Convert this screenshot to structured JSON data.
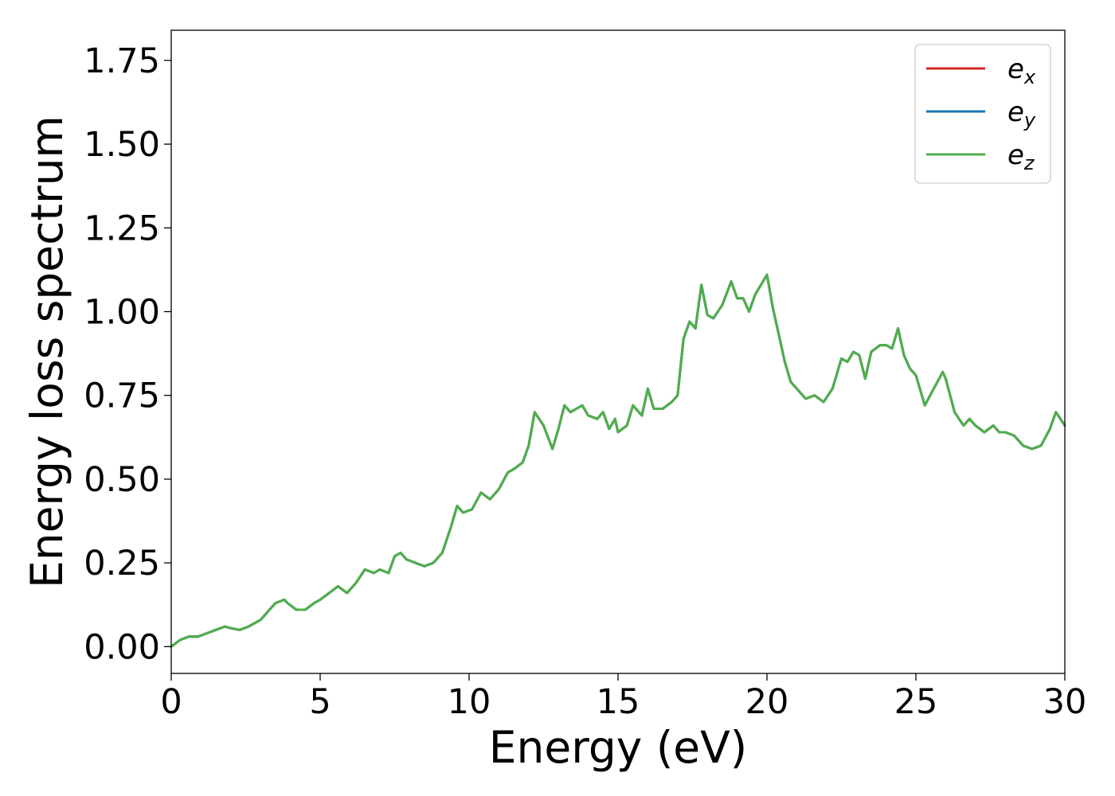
{
  "chart_data": {
    "type": "line",
    "xlabel": "Energy (eV)",
    "ylabel": "Energy loss spectrum",
    "xlim": [
      0,
      30
    ],
    "ylim": [
      -0.08,
      1.84
    ],
    "xticks": [
      0,
      5,
      10,
      15,
      20,
      25,
      30
    ],
    "xtick_labels": [
      "0",
      "5",
      "10",
      "15",
      "20",
      "25",
      "30"
    ],
    "yticks": [
      0.0,
      0.25,
      0.5,
      0.75,
      1.0,
      1.25,
      1.5,
      1.75
    ],
    "ytick_labels": [
      "0.00",
      "0.25",
      "0.50",
      "0.75",
      "1.00",
      "1.25",
      "1.50",
      "1.75"
    ],
    "grid": false,
    "legend_position": "top-right",
    "series_colors": [
      "#d62728",
      "#1f77b4",
      "#4daf4a"
    ],
    "legend": [
      {
        "base": "e",
        "sub": "x"
      },
      {
        "base": "e",
        "sub": "y"
      },
      {
        "base": "e",
        "sub": "z"
      }
    ],
    "x": [
      0,
      0.3,
      0.6,
      0.9,
      1.2,
      1.5,
      1.8,
      2.0,
      2.3,
      2.6,
      3.0,
      3.3,
      3.5,
      3.8,
      3.9,
      4.2,
      4.5,
      4.8,
      5.0,
      5.3,
      5.6,
      5.9,
      6.2,
      6.5,
      6.8,
      7.0,
      7.3,
      7.5,
      7.7,
      7.9,
      8.2,
      8.5,
      8.8,
      9.1,
      9.4,
      9.6,
      9.8,
      10.1,
      10.4,
      10.7,
      11.0,
      11.3,
      11.5,
      11.8,
      12.0,
      12.2,
      12.5,
      12.8,
      13.0,
      13.2,
      13.4,
      13.6,
      13.8,
      14.0,
      14.3,
      14.5,
      14.7,
      14.9,
      15.0,
      15.3,
      15.5,
      15.8,
      16.0,
      16.2,
      16.5,
      16.8,
      17.0,
      17.2,
      17.4,
      17.6,
      17.8,
      18.0,
      18.2,
      18.5,
      18.8,
      19.0,
      19.2,
      19.4,
      19.6,
      20.0,
      20.2,
      20.4,
      20.6,
      20.8,
      21.0,
      21.3,
      21.6,
      21.9,
      22.2,
      22.5,
      22.7,
      22.9,
      23.1,
      23.3,
      23.5,
      23.8,
      24.0,
      24.2,
      24.4,
      24.6,
      24.8,
      25.0,
      25.3,
      25.6,
      25.9,
      26.0,
      26.3,
      26.6,
      26.8,
      27.0,
      27.3,
      27.6,
      27.8,
      28.0,
      28.3,
      28.6,
      28.9,
      29.2,
      29.5,
      29.7,
      30.0
    ],
    "series": [
      {
        "values": [
          0.0,
          0.02,
          0.03,
          0.03,
          0.04,
          0.05,
          0.06,
          0.055,
          0.05,
          0.06,
          0.08,
          0.11,
          0.13,
          0.14,
          0.13,
          0.11,
          0.11,
          0.13,
          0.14,
          0.16,
          0.18,
          0.16,
          0.19,
          0.23,
          0.22,
          0.23,
          0.22,
          0.27,
          0.28,
          0.26,
          0.25,
          0.24,
          0.25,
          0.28,
          0.36,
          0.42,
          0.4,
          0.41,
          0.46,
          0.44,
          0.47,
          0.52,
          0.53,
          0.55,
          0.6,
          0.7,
          0.66,
          0.59,
          0.65,
          0.72,
          0.7,
          0.71,
          0.72,
          0.69,
          0.68,
          0.7,
          0.65,
          0.68,
          0.64,
          0.66,
          0.72,
          0.69,
          0.77,
          0.71,
          0.71,
          0.73,
          0.75,
          0.92,
          0.97,
          0.95,
          1.08,
          0.99,
          0.98,
          1.02,
          1.09,
          1.04,
          1.04,
          1.0,
          1.05,
          1.11,
          1.01,
          0.93,
          0.85,
          0.79,
          0.77,
          0.74,
          0.75,
          0.73,
          0.77,
          0.86,
          0.85,
          0.88,
          0.87,
          0.8,
          0.88,
          0.9,
          0.9,
          0.89,
          0.95,
          0.87,
          0.83,
          0.81,
          0.72,
          0.77,
          0.82,
          0.8,
          0.7,
          0.66,
          0.68,
          0.66,
          0.64,
          0.66,
          0.64,
          0.64,
          0.63,
          0.6,
          0.59,
          0.6,
          0.65,
          0.7,
          0.66
        ]
      },
      {
        "values": [
          0.0,
          0.02,
          0.03,
          0.03,
          0.04,
          0.05,
          0.06,
          0.055,
          0.05,
          0.06,
          0.08,
          0.11,
          0.13,
          0.14,
          0.13,
          0.11,
          0.11,
          0.13,
          0.14,
          0.16,
          0.18,
          0.16,
          0.19,
          0.23,
          0.22,
          0.23,
          0.22,
          0.27,
          0.28,
          0.26,
          0.25,
          0.24,
          0.25,
          0.28,
          0.36,
          0.42,
          0.4,
          0.41,
          0.46,
          0.44,
          0.47,
          0.52,
          0.53,
          0.55,
          0.6,
          0.7,
          0.66,
          0.59,
          0.65,
          0.72,
          0.7,
          0.71,
          0.72,
          0.69,
          0.68,
          0.7,
          0.65,
          0.68,
          0.64,
          0.66,
          0.72,
          0.69,
          0.77,
          0.71,
          0.71,
          0.73,
          0.75,
          0.92,
          0.97,
          0.95,
          1.08,
          0.99,
          0.98,
          1.02,
          1.09,
          1.04,
          1.04,
          1.0,
          1.05,
          1.11,
          1.01,
          0.93,
          0.85,
          0.79,
          0.77,
          0.74,
          0.75,
          0.73,
          0.77,
          0.86,
          0.85,
          0.88,
          0.87,
          0.8,
          0.88,
          0.9,
          0.9,
          0.89,
          0.95,
          0.87,
          0.83,
          0.81,
          0.72,
          0.77,
          0.82,
          0.8,
          0.7,
          0.66,
          0.68,
          0.66,
          0.64,
          0.66,
          0.64,
          0.64,
          0.63,
          0.6,
          0.59,
          0.6,
          0.65,
          0.7,
          0.66
        ]
      },
      {
        "values": [
          0.0,
          0.02,
          0.03,
          0.03,
          0.04,
          0.05,
          0.06,
          0.055,
          0.05,
          0.06,
          0.08,
          0.11,
          0.13,
          0.14,
          0.13,
          0.11,
          0.11,
          0.13,
          0.14,
          0.16,
          0.18,
          0.16,
          0.19,
          0.23,
          0.22,
          0.23,
          0.22,
          0.27,
          0.28,
          0.26,
          0.25,
          0.24,
          0.25,
          0.28,
          0.36,
          0.42,
          0.4,
          0.41,
          0.46,
          0.44,
          0.47,
          0.52,
          0.53,
          0.55,
          0.6,
          0.7,
          0.66,
          0.59,
          0.65,
          0.72,
          0.7,
          0.71,
          0.72,
          0.69,
          0.68,
          0.7,
          0.65,
          0.68,
          0.64,
          0.66,
          0.72,
          0.69,
          0.77,
          0.71,
          0.71,
          0.73,
          0.75,
          0.92,
          0.97,
          0.95,
          1.08,
          0.99,
          0.98,
          1.02,
          1.09,
          1.04,
          1.04,
          1.0,
          1.05,
          1.11,
          1.01,
          0.93,
          0.85,
          0.79,
          0.77,
          0.74,
          0.75,
          0.73,
          0.77,
          0.86,
          0.85,
          0.88,
          0.87,
          0.8,
          0.88,
          0.9,
          0.9,
          0.89,
          0.95,
          0.87,
          0.83,
          0.81,
          0.72,
          0.77,
          0.82,
          0.8,
          0.7,
          0.66,
          0.68,
          0.66,
          0.64,
          0.66,
          0.64,
          0.64,
          0.63,
          0.6,
          0.59,
          0.6,
          0.65,
          0.7,
          0.66
        ]
      }
    ]
  }
}
